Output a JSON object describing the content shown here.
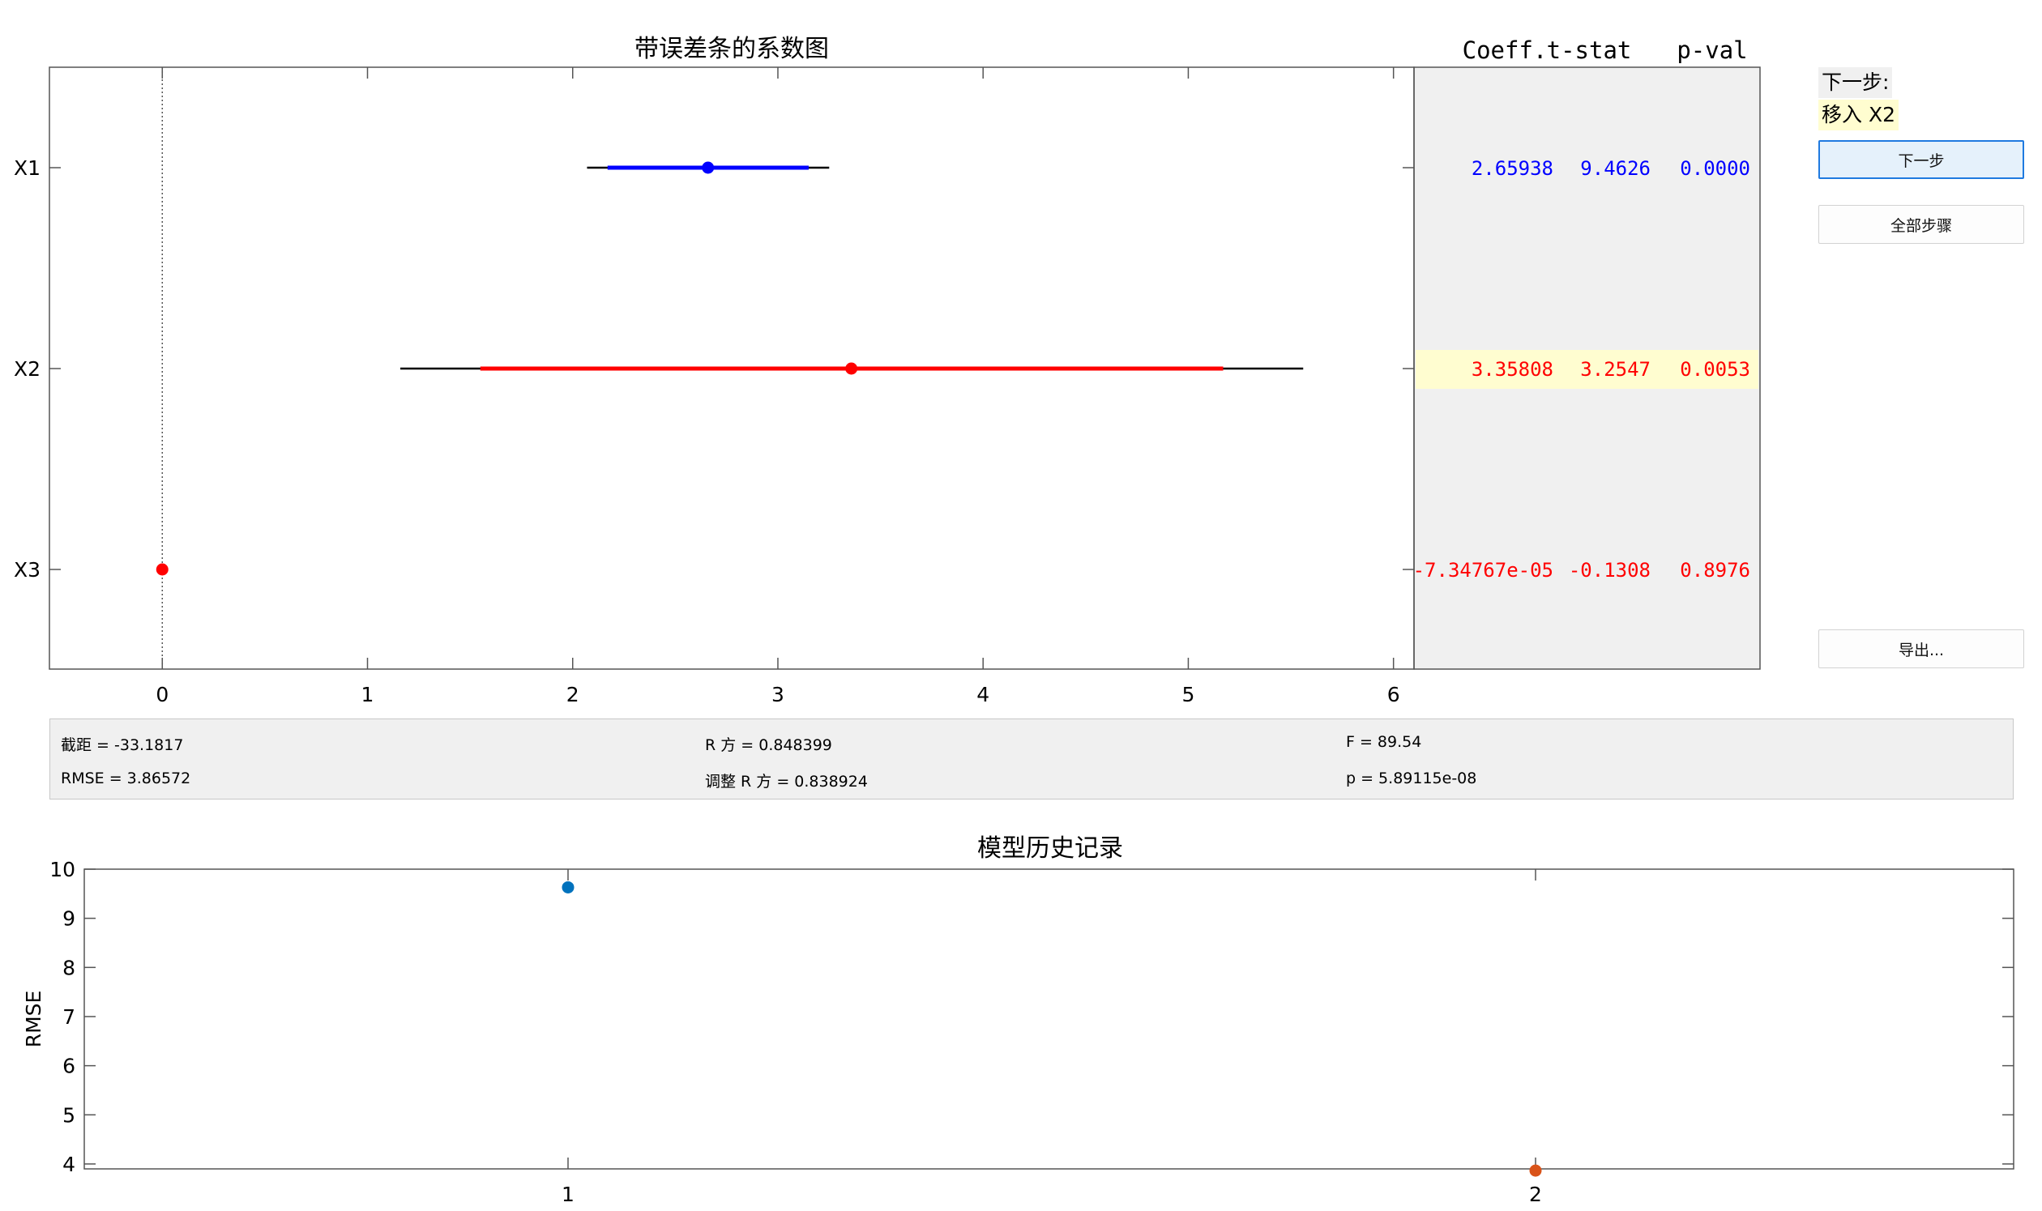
{
  "coef_plot": {
    "title": "带误差条的系数图",
    "terms": [
      "X1",
      "X2",
      "X3"
    ],
    "x_ticks": [
      "0",
      "1",
      "2",
      "3",
      "4",
      "5",
      "6"
    ],
    "xlim": [
      -0.55,
      6.1
    ],
    "rows": [
      {
        "term": "X1",
        "coef": 2.65938,
        "ci_inner": [
          2.17,
          3.15
        ],
        "ci_outer": [
          2.07,
          3.25
        ],
        "color": "#0000ff",
        "in_model": true
      },
      {
        "term": "X2",
        "coef": 3.35808,
        "ci_inner": [
          1.55,
          5.17
        ],
        "ci_outer": [
          1.16,
          5.56
        ],
        "color": "#ff0000",
        "in_model": false
      },
      {
        "term": "X3",
        "coef": -7.34767e-05,
        "ci_inner": null,
        "ci_outer": null,
        "color": "#ff0000",
        "in_model": false
      }
    ]
  },
  "table": {
    "headers": [
      "Coeff.",
      "t-stat",
      "p-val"
    ],
    "rows": [
      {
        "coeff": "2.65938",
        "tstat": "9.4626",
        "pval": "0.0000",
        "color": "#0000ff",
        "highlight": false
      },
      {
        "coeff": "3.35808",
        "tstat": "3.2547",
        "pval": "0.0053",
        "color": "#ff0000",
        "highlight": true
      },
      {
        "coeff": "-7.34767e-05",
        "tstat": "-0.1308",
        "pval": "0.8976",
        "color": "#ff0000",
        "highlight": false
      }
    ]
  },
  "side": {
    "next_step_label": "下一步:",
    "next_step_value": "移入 X2",
    "next_button": "下一步",
    "all_steps_button": "全部步骤",
    "export_button": "导出..."
  },
  "stats": {
    "intercept": "截距 = -33.1817",
    "rmse": "RMSE = 3.86572",
    "rsq": "R 方 = 0.848399",
    "adj_rsq": "调整 R 方 = 0.838924",
    "f": "F = 89.54",
    "p": "p = 5.89115e-08"
  },
  "history": {
    "title": "模型历史记录",
    "ylabel": "RMSE",
    "y_ticks": [
      "4",
      "5",
      "6",
      "7",
      "8",
      "9",
      "10"
    ],
    "x_ticks": [
      "1",
      "2"
    ]
  },
  "chart_data": [
    {
      "type": "scatter",
      "title": "带误差条的系数图",
      "categories": [
        "X1",
        "X2",
        "X3"
      ],
      "values": [
        2.65938,
        3.35808,
        -7.34767e-05
      ],
      "xlim": [
        -0.55,
        6.1
      ],
      "grid": false
    },
    {
      "type": "scatter",
      "title": "模型历史记录",
      "ylabel": "RMSE",
      "x": [
        1,
        2
      ],
      "y": [
        9.63,
        3.86572
      ],
      "ylim": [
        3.9,
        10
      ],
      "colors": [
        "#0072bd",
        "#d95319"
      ],
      "grid": false
    }
  ]
}
